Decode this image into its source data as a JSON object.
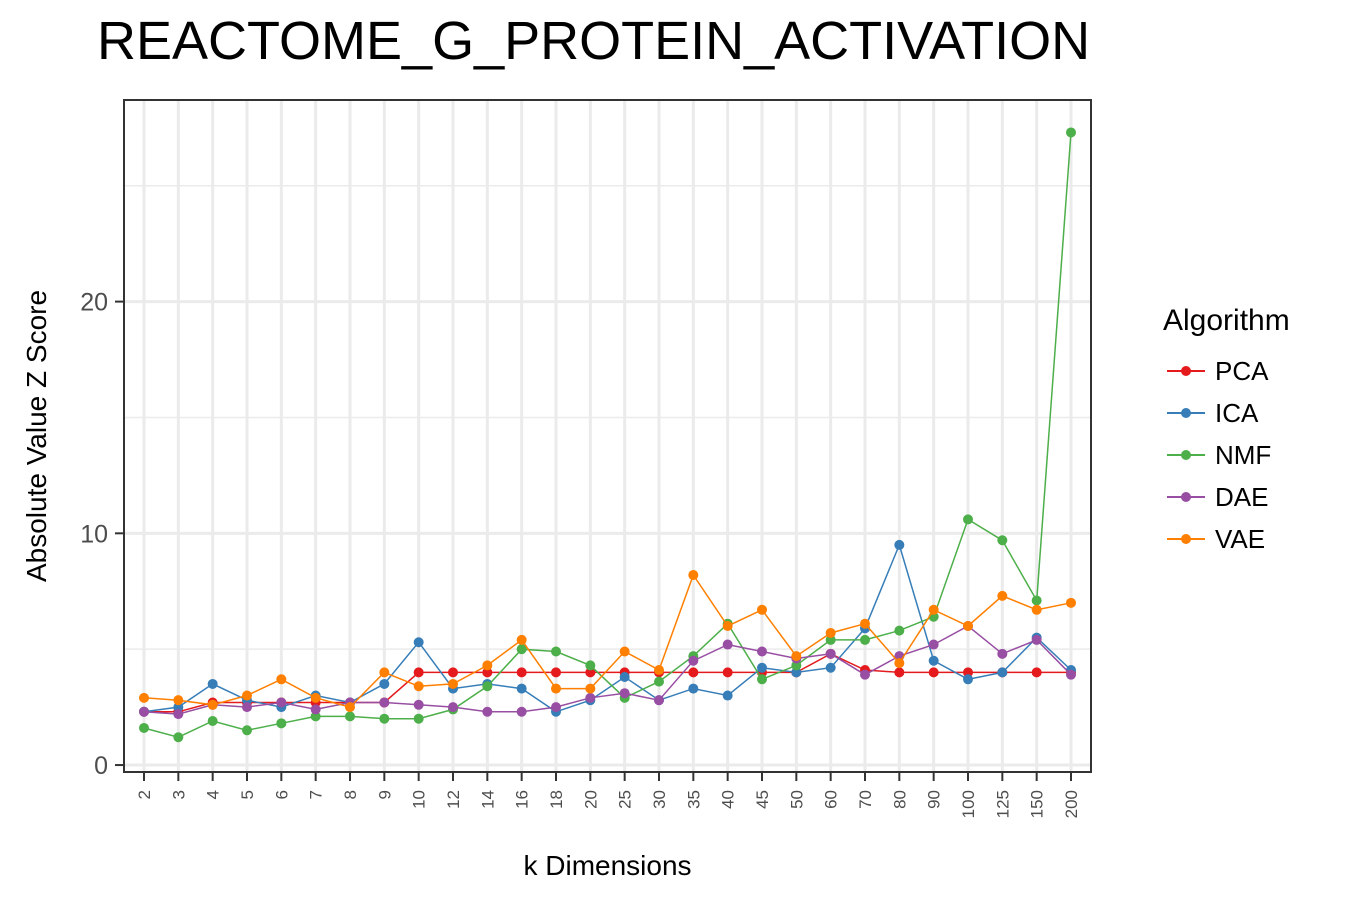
{
  "chart_data": {
    "type": "line",
    "title": "REACTOME_G_PROTEIN_ACTIVATION",
    "xlabel": "k Dimensions",
    "ylabel": "Absolute Value Z Score",
    "categories": [
      "2",
      "3",
      "4",
      "5",
      "6",
      "7",
      "8",
      "9",
      "10",
      "12",
      "14",
      "16",
      "18",
      "20",
      "25",
      "30",
      "35",
      "40",
      "45",
      "50",
      "60",
      "70",
      "80",
      "90",
      "100",
      "125",
      "150",
      "200"
    ],
    "y_ticks": [
      0,
      10,
      20
    ],
    "ylim": [
      -0.3,
      28.7
    ],
    "grid": true,
    "legend_title": "Algorithm",
    "legend_position": "right",
    "series": [
      {
        "name": "PCA",
        "color": "#E41A1C",
        "values": [
          2.3,
          2.3,
          2.7,
          2.7,
          2.7,
          2.7,
          2.7,
          2.7,
          4.0,
          4.0,
          4.0,
          4.0,
          4.0,
          4.0,
          4.0,
          4.0,
          4.0,
          4.0,
          4.0,
          4.0,
          4.8,
          4.1,
          4.0,
          4.0,
          4.0,
          4.0,
          4.0,
          4.0
        ]
      },
      {
        "name": "ICA",
        "color": "#377EB8",
        "values": [
          2.3,
          2.5,
          3.5,
          2.8,
          2.5,
          3.0,
          2.7,
          3.5,
          5.3,
          3.3,
          3.5,
          3.3,
          2.3,
          2.8,
          3.8,
          2.8,
          3.3,
          3.0,
          4.2,
          4.0,
          4.2,
          5.9,
          9.5,
          4.5,
          3.7,
          4.0,
          5.5,
          4.1
        ]
      },
      {
        "name": "NMF",
        "color": "#4DAF4A",
        "values": [
          1.6,
          1.2,
          1.9,
          1.5,
          1.8,
          2.1,
          2.1,
          2.0,
          2.0,
          2.4,
          3.4,
          5.0,
          4.9,
          4.3,
          2.9,
          3.6,
          4.7,
          6.1,
          3.7,
          4.3,
          5.4,
          5.4,
          5.8,
          6.4,
          10.6,
          9.7,
          7.1,
          27.3
        ]
      },
      {
        "name": "DAE",
        "color": "#984EA3",
        "values": [
          2.3,
          2.2,
          2.6,
          2.5,
          2.7,
          2.4,
          2.7,
          2.7,
          2.6,
          2.5,
          2.3,
          2.3,
          2.5,
          2.9,
          3.1,
          2.8,
          4.5,
          5.2,
          4.9,
          4.6,
          4.8,
          3.9,
          4.7,
          5.2,
          6.0,
          4.8,
          5.4,
          3.9
        ]
      },
      {
        "name": "VAE",
        "color": "#FF7F00",
        "values": [
          2.9,
          2.8,
          2.6,
          3.0,
          3.7,
          2.9,
          2.5,
          4.0,
          3.4,
          3.5,
          4.3,
          5.4,
          3.3,
          3.3,
          4.9,
          4.1,
          8.2,
          6.0,
          6.7,
          4.7,
          5.7,
          6.1,
          4.4,
          6.7,
          6.0,
          7.3,
          6.7,
          7.0
        ]
      }
    ]
  }
}
